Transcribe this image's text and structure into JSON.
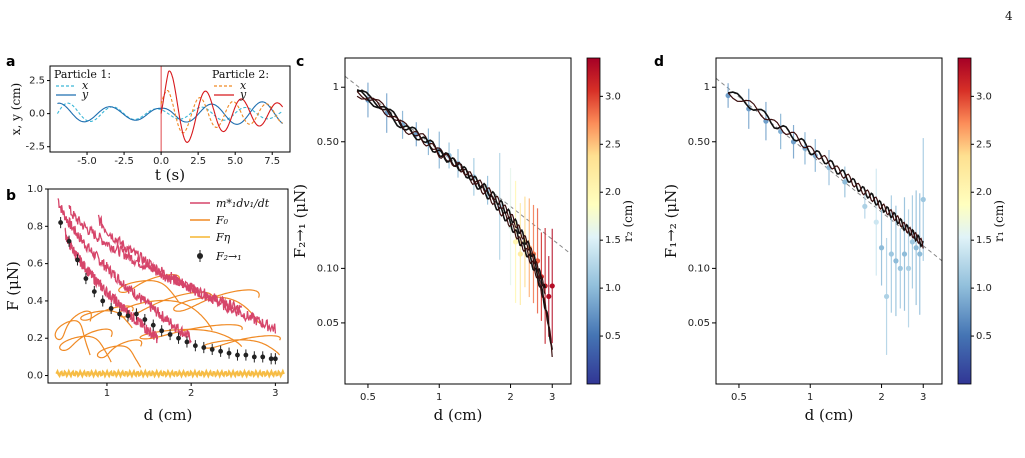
{
  "page_number": "4",
  "colors": {
    "p1x": "#3cb8d8",
    "p1y": "#1f6fb0",
    "p2x": "#f08a24",
    "p2y": "#d7191c",
    "accel": "#d6456a",
    "f0": "#f08a24",
    "feta": "#f5b531",
    "points": "#222222"
  },
  "chart_data": [
    {
      "panel": "a",
      "type": "line",
      "xlabel": "t (s)",
      "ylabel": "x, y (cm)",
      "xlim": [
        -7.5,
        8.7
      ],
      "ylim": [
        -2.9,
        3.6
      ],
      "xticks": [
        "-5.0",
        "-2.5",
        "0.0",
        "2.5",
        "5.0",
        "7.5"
      ],
      "yticks": [
        "-2.5",
        "0.0",
        "2.5"
      ],
      "legend_titles": [
        "Particle 1:",
        "Particle 2:"
      ],
      "series": [
        {
          "name": "x",
          "particle": 1,
          "style": "dashed",
          "t": [
            -7.0,
            -5.0,
            -3.0,
            -1.0,
            0.0,
            1.0,
            3.0,
            5.0,
            7.0,
            8.0
          ],
          "amplitude": [
            0.9,
            0.6,
            0.5,
            0.4,
            0.35,
            0.4,
            0.5,
            0.5,
            0.4,
            0.35
          ]
        },
        {
          "name": "y",
          "particle": 1,
          "style": "solid",
          "t": [
            -7.0,
            -5.0,
            -3.0,
            -1.0,
            0.0,
            1.0,
            3.0,
            5.0,
            7.0,
            8.0
          ],
          "amplitude": [
            0.8,
            0.6,
            0.5,
            0.5,
            0.4,
            0.6,
            0.7,
            0.8,
            0.9,
            0.9
          ]
        },
        {
          "name": "x",
          "particle": 2,
          "style": "dashed",
          "t": [
            0.0,
            0.5,
            1.0,
            2.0,
            4.0,
            6.0,
            8.0
          ],
          "amplitude": [
            1.5,
            1.8,
            1.6,
            1.3,
            1.0,
            0.8,
            0.7
          ]
        },
        {
          "name": "y",
          "particle": 2,
          "style": "solid",
          "t": [
            0.0,
            0.5,
            1.0,
            2.0,
            4.0,
            6.0,
            8.0
          ],
          "amplitude": [
            2.2,
            3.3,
            2.8,
            2.0,
            1.4,
            1.0,
            0.8
          ]
        }
      ]
    },
    {
      "panel": "b",
      "type": "scatter",
      "xlabel": "d (cm)",
      "ylabel": "F (μN)",
      "xlim": [
        0.3,
        3.15
      ],
      "ylim": [
        -0.04,
        1.0
      ],
      "xticks": [
        "1",
        "2",
        "3"
      ],
      "yticks": [
        "0.0",
        "0.2",
        "0.4",
        "0.6",
        "0.8",
        "1.0"
      ],
      "legend": [
        "m*₁dv₁/dt",
        "F₀",
        "Fη",
        "F₂→₁"
      ],
      "series": [
        {
          "name": "F₂→₁",
          "x": [
            0.45,
            0.55,
            0.65,
            0.75,
            0.85,
            0.95,
            1.05,
            1.15,
            1.25,
            1.35,
            1.45,
            1.55,
            1.65,
            1.75,
            1.85,
            1.95,
            2.05,
            2.15,
            2.25,
            2.35,
            2.45,
            2.55,
            2.65,
            2.75,
            2.85,
            2.95,
            3.0
          ],
          "y": [
            0.82,
            0.72,
            0.62,
            0.52,
            0.45,
            0.4,
            0.36,
            0.33,
            0.32,
            0.33,
            0.3,
            0.27,
            0.24,
            0.22,
            0.2,
            0.18,
            0.16,
            0.15,
            0.14,
            0.13,
            0.12,
            0.11,
            0.11,
            0.1,
            0.1,
            0.09,
            0.09
          ]
        }
      ]
    },
    {
      "panel": "c",
      "type": "scatter",
      "xlabel": "d (cm)",
      "ylabel": "F₂→₁ (μN)",
      "colorbar_label": "r₂ (cm)",
      "xscale": "log",
      "yscale": "log",
      "xlim": [
        0.4,
        3.6
      ],
      "ylim": [
        0.023,
        1.45
      ],
      "xticks": [
        "0.5",
        "1",
        "2",
        "3"
      ],
      "yticks": [
        "0.05",
        "0.10",
        "0.50",
        "1"
      ],
      "colorbar_ticks": [
        "0.5",
        "1.0",
        "1.5",
        "2.0",
        "2.5",
        "3.0"
      ],
      "colorbar_range": [
        0.0,
        3.4
      ],
      "points": {
        "x": [
          0.5,
          0.6,
          0.7,
          0.8,
          0.9,
          1.0,
          1.1,
          1.2,
          1.4,
          1.6,
          1.8,
          2.0,
          2.1,
          2.2,
          2.3,
          2.4,
          2.5,
          2.6,
          2.7,
          2.8,
          2.9,
          3.0
        ],
        "y": [
          0.85,
          0.72,
          0.62,
          0.55,
          0.5,
          0.45,
          0.42,
          0.38,
          0.32,
          0.27,
          0.22,
          0.17,
          0.14,
          0.12,
          0.14,
          0.13,
          0.12,
          0.11,
          0.09,
          0.08,
          0.07,
          0.08
        ],
        "r": [
          0.8,
          0.8,
          0.9,
          0.8,
          0.9,
          0.9,
          1.0,
          1.0,
          1.1,
          1.0,
          1.2,
          1.6,
          2.0,
          2.2,
          2.4,
          2.6,
          2.8,
          2.9,
          3.1,
          3.2,
          3.3,
          3.3
        ]
      },
      "curves": [
        {
          "x": [
            0.45,
            0.7,
            1.0,
            1.4,
            1.8,
            2.2,
            2.6,
            3.0
          ],
          "y": [
            0.95,
            0.62,
            0.44,
            0.3,
            0.21,
            0.14,
            0.09,
            0.034
          ]
        },
        {
          "x": [
            0.45,
            0.7,
            1.0,
            1.4,
            1.8,
            2.2,
            2.6,
            2.8
          ],
          "y": [
            0.93,
            0.6,
            0.43,
            0.31,
            0.23,
            0.16,
            0.1,
            0.075
          ]
        }
      ],
      "reference_line": {
        "x": [
          0.4,
          3.6
        ],
        "y": [
          1.15,
          0.12
        ]
      }
    },
    {
      "panel": "d",
      "type": "scatter",
      "xlabel": "d (cm)",
      "ylabel": "F₁→₂ (μN)",
      "colorbar_label": "r₁ (cm)",
      "xscale": "log",
      "yscale": "log",
      "xlim": [
        0.4,
        3.6
      ],
      "ylim": [
        0.023,
        1.45
      ],
      "xticks": [
        "0.5",
        "1",
        "2",
        "3"
      ],
      "yticks": [
        "0.05",
        "0.10",
        "0.50",
        "1"
      ],
      "colorbar_ticks": [
        "0.5",
        "1.0",
        "1.5",
        "2.0",
        "2.5",
        "3.0"
      ],
      "colorbar_range": [
        0.0,
        3.4
      ],
      "points": {
        "x": [
          0.45,
          0.55,
          0.65,
          0.75,
          0.85,
          0.95,
          1.05,
          1.2,
          1.4,
          1.7,
          1.9,
          2.0,
          2.1,
          2.2,
          2.3,
          2.4,
          2.5,
          2.6,
          2.7,
          2.8,
          2.9,
          3.0
        ],
        "y": [
          0.9,
          0.76,
          0.65,
          0.57,
          0.5,
          0.46,
          0.42,
          0.36,
          0.3,
          0.22,
          0.18,
          0.13,
          0.07,
          0.12,
          0.11,
          0.1,
          0.12,
          0.1,
          0.14,
          0.13,
          0.12,
          0.24
        ],
        "r": [
          0.8,
          0.8,
          0.8,
          0.9,
          0.8,
          0.9,
          0.9,
          1.0,
          1.0,
          1.2,
          1.4,
          1.0,
          1.2,
          1.1,
          1.0,
          1.1,
          1.0,
          1.2,
          1.1,
          1.0,
          1.0,
          1.1
        ]
      },
      "curves": [
        {
          "x": [
            0.45,
            0.7,
            1.0,
            1.3,
            1.6,
            2.0,
            2.5,
            3.0
          ],
          "y": [
            0.93,
            0.63,
            0.45,
            0.35,
            0.28,
            0.22,
            0.17,
            0.135
          ]
        }
      ],
      "reference_line": {
        "x": [
          0.4,
          3.6
        ],
        "y": [
          1.12,
          0.11
        ]
      }
    }
  ]
}
